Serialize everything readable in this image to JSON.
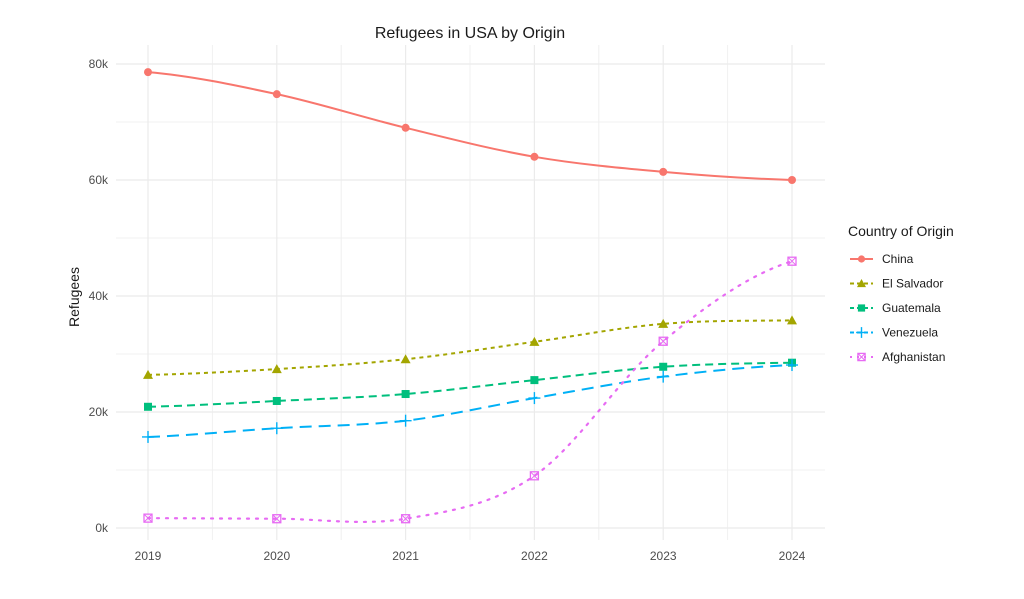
{
  "chart_data": {
    "type": "line",
    "title": "Refugees in USA by Origin",
    "xlabel": "",
    "ylabel": "Refugees",
    "x": [
      2019,
      2020,
      2021,
      2022,
      2023,
      2024
    ],
    "x_tick_labels": [
      "2019",
      "2020",
      "2021",
      "2022",
      "2023",
      "2024"
    ],
    "y_ticks": [
      0,
      20000,
      40000,
      60000,
      80000
    ],
    "y_tick_labels": [
      "0k",
      "20k",
      "40k",
      "60k",
      "80k"
    ],
    "ylim": [
      -2000,
      84000
    ],
    "grid": true,
    "legend": {
      "title": "Country of Origin",
      "position": "right"
    },
    "series": [
      {
        "name": "China",
        "color": "#F8766D",
        "linestyle": "solid",
        "marker": "circle",
        "values": [
          78600,
          74800,
          69000,
          64000,
          61400,
          60000
        ]
      },
      {
        "name": "El Salvador",
        "color": "#A3A500",
        "linestyle": "dotted-dash",
        "marker": "triangle",
        "values": [
          26400,
          27400,
          29100,
          32100,
          35200,
          35800
        ]
      },
      {
        "name": "Guatemala",
        "color": "#00BF7D",
        "linestyle": "dashed",
        "marker": "square",
        "values": [
          20900,
          21900,
          23100,
          25500,
          27800,
          28500
        ]
      },
      {
        "name": "Venezuela",
        "color": "#00B0F6",
        "linestyle": "longdash",
        "marker": "plus",
        "values": [
          15700,
          17200,
          18500,
          22400,
          26100,
          28100
        ]
      },
      {
        "name": "Afghanistan",
        "color": "#E76BF3",
        "linestyle": "dotted",
        "marker": "square-cross",
        "values": [
          1700,
          1600,
          1600,
          9000,
          32200,
          46000
        ]
      }
    ]
  }
}
